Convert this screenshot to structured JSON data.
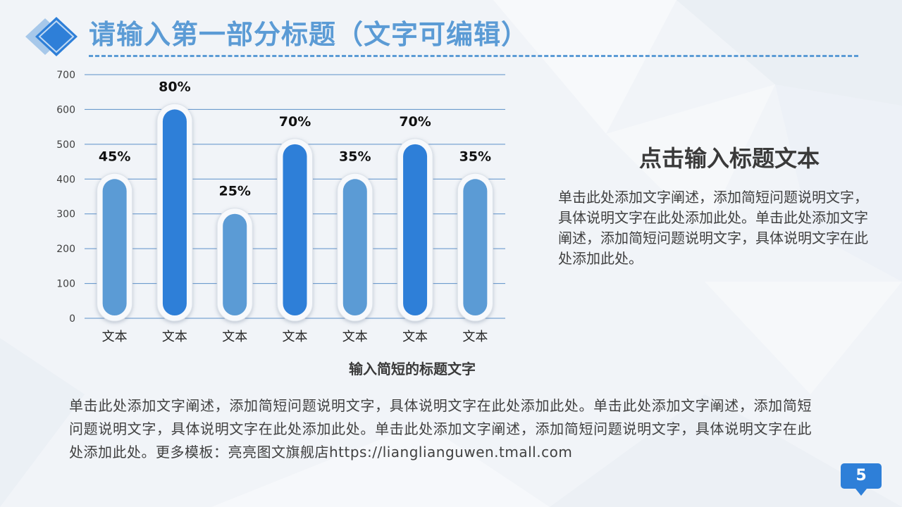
{
  "header": {
    "title": "请输入第一部分标题（文字可编辑）"
  },
  "colors": {
    "accent": "#5b9bd5",
    "bar_light": "#5b9bd5",
    "bar_dark": "#2e7fd8",
    "badge": "#2e7fd8",
    "gridline": "#5b8fc9"
  },
  "chart_data": {
    "type": "bar",
    "categories": [
      "文本",
      "文本",
      "文本",
      "文本",
      "文本",
      "文本",
      "文本"
    ],
    "values": [
      400,
      600,
      300,
      500,
      400,
      500,
      400
    ],
    "labels": [
      "45%",
      "80%",
      "25%",
      "70%",
      "35%",
      "70%",
      "35%"
    ],
    "bar_colors": [
      "#5b9bd5",
      "#2e7fd8",
      "#5b9bd5",
      "#2e7fd8",
      "#5b9bd5",
      "#2e7fd8",
      "#5b9bd5"
    ],
    "ylim": [
      0,
      700
    ],
    "yticks": [
      0,
      100,
      200,
      300,
      400,
      500,
      600,
      700
    ],
    "grid": true,
    "title": "",
    "xlabel": "",
    "ylabel": ""
  },
  "chart": {
    "caption": "输入简短的标题文字"
  },
  "side": {
    "title": "点击输入标题文本",
    "body": "单击此处添加文字阐述，添加简短问题说明文字，具体说明文字在此处添加此处。单击此处添加文字阐述，添加简短问题说明文字，具体说明文字在此处添加此处。"
  },
  "description": "单击此处添加文字阐述，添加简短问题说明文字，具体说明文字在此处添加此处。单击此处添加文字阐述，添加简短问题说明文字，具体说明文字在此处添加此处。单击此处添加文字阐述，添加简短问题说明文字，具体说明文字在此处添加此处。更多模板：亮亮图文旗舰店https://lianglianguwen.tmall.com",
  "footer": {
    "page_number": "5"
  }
}
